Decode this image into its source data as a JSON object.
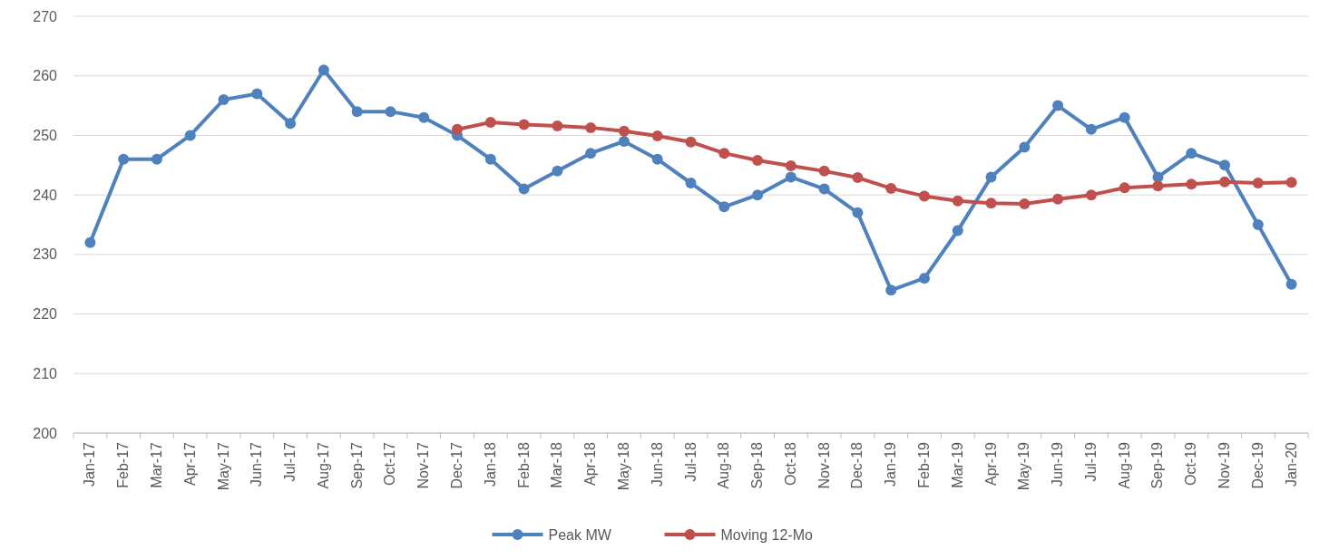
{
  "chart_data": {
    "type": "line",
    "categories": [
      "Jan-17",
      "Feb-17",
      "Mar-17",
      "Apr-17",
      "May-17",
      "Jun-17",
      "Jul-17",
      "Aug-17",
      "Sep-17",
      "Oct-17",
      "Nov-17",
      "Dec-17",
      "Jan-18",
      "Feb-18",
      "Mar-18",
      "Apr-18",
      "May-18",
      "Jun-18",
      "Jul-18",
      "Aug-18",
      "Sep-18",
      "Oct-18",
      "Nov-18",
      "Dec-18",
      "Jan-19",
      "Feb-19",
      "Mar-19",
      "Apr-19",
      "May-19",
      "Jun-19",
      "Jul-19",
      "Aug-19",
      "Sep-19",
      "Oct-19",
      "Nov-19",
      "Dec-19",
      "Jan-20"
    ],
    "series": [
      {
        "name": "Peak MW",
        "color": "#4f81bd",
        "values": [
          232,
          246,
          246,
          250,
          256,
          257,
          252,
          261,
          254,
          254,
          253,
          250,
          246,
          241,
          244,
          247,
          249,
          246,
          242,
          238,
          240,
          243,
          241,
          237,
          224,
          226,
          234,
          243,
          248,
          255,
          251,
          253,
          243,
          247,
          245,
          235,
          225
        ]
      },
      {
        "name": "Moving 12-Mo",
        "color": "#c0504d",
        "values": [
          null,
          null,
          null,
          null,
          null,
          null,
          null,
          null,
          null,
          null,
          null,
          251.0,
          252.2,
          251.8,
          251.6,
          251.3,
          250.7,
          249.9,
          248.9,
          247.0,
          245.8,
          244.9,
          244.0,
          242.9,
          241.1,
          239.8,
          239.0,
          238.6,
          238.5,
          239.3,
          240.0,
          241.2,
          241.5,
          241.8,
          242.2,
          242.0,
          242.1
        ]
      }
    ],
    "ylim": [
      200,
      270
    ],
    "yticks": [
      200,
      210,
      220,
      230,
      240,
      250,
      260,
      270
    ],
    "grid": "y",
    "legend": "bottom",
    "marker": "circle",
    "line_style": "solid"
  }
}
